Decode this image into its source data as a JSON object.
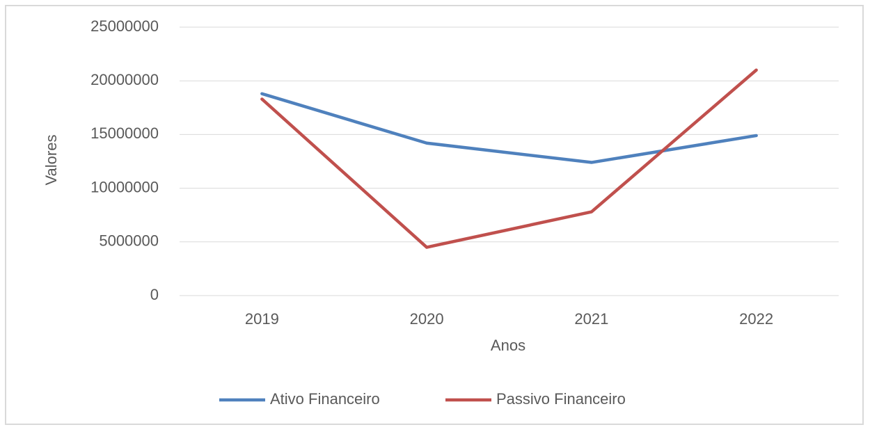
{
  "chart_data": {
    "type": "line",
    "categories": [
      "2019",
      "2020",
      "2021",
      "2022"
    ],
    "series": [
      {
        "name": "Ativo Financeiro",
        "color": "#4f81bd",
        "values": [
          18800000,
          14200000,
          12400000,
          14900000
        ]
      },
      {
        "name": "Passivo Financeiro",
        "color": "#c0504d",
        "values": [
          18300000,
          4500000,
          7800000,
          21000000
        ]
      }
    ],
    "ylim": [
      0,
      25000000
    ],
    "yticks": [
      0,
      5000000,
      10000000,
      15000000,
      20000000,
      25000000
    ],
    "x_label": "Anos",
    "y_label": "Valores",
    "grid": true,
    "legend": "bottom"
  }
}
